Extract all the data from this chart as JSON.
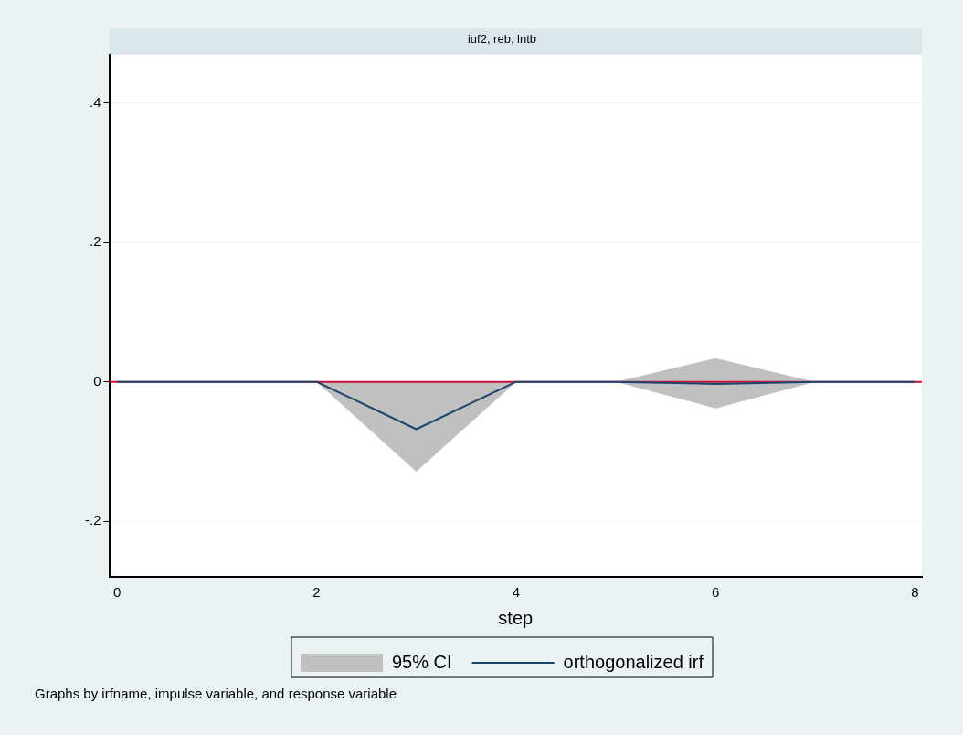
{
  "chart_data": {
    "type": "line",
    "title": "iuf2, reb, lntb",
    "xlabel": "step",
    "x": [
      0,
      1,
      2,
      3,
      4,
      5,
      6,
      7,
      8
    ],
    "series": [
      {
        "name": "95% CI",
        "type": "area",
        "color": "#c0c0c0",
        "values": [
          null,
          null,
          null,
          null,
          null,
          null,
          null,
          null,
          null
        ],
        "lower": [
          0,
          0,
          0,
          -0.129,
          0,
          0,
          -0.038,
          0,
          0
        ],
        "upper": [
          0,
          0,
          0,
          0,
          0,
          0,
          0.034,
          0,
          0
        ]
      },
      {
        "name": "orthogonalized irf",
        "type": "line",
        "color": "#1a476f",
        "values": [
          0,
          0,
          0,
          -0.068,
          0,
          0,
          -0.003,
          0,
          0
        ]
      }
    ],
    "xlim": [
      -0.08,
      8.07
    ],
    "xticks": [
      0,
      2,
      4,
      6,
      8
    ],
    "ylim": [
      -0.28,
      0.47
    ],
    "yticks": [
      {
        "value": -0.2,
        "label": "-.2"
      },
      0,
      {
        "value": 0.2,
        "label": ".2"
      },
      {
        "value": 0.4,
        "label": ".4"
      }
    ],
    "ref_lines": [
      {
        "axis": "y",
        "value": 0,
        "color": "#d0103a"
      }
    ],
    "grid": "y",
    "legend": "bottom",
    "marker": "none",
    "line_style": "solid",
    "annotations": [
      "Graphs by irfname, impulse variable, and response variable"
    ]
  }
}
